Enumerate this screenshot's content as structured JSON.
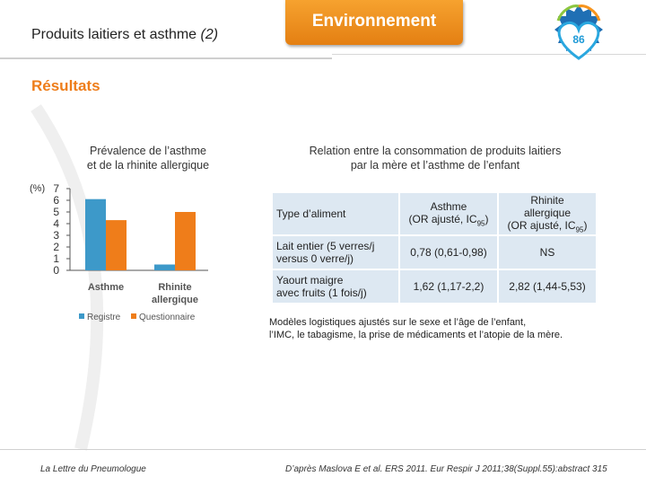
{
  "header": {
    "title": "Produits laitiers et asthme",
    "title_suffix": "(2)",
    "tab_label": "Environnement",
    "page_number": "86"
  },
  "section_title": "Résultats",
  "chart": {
    "title_line1": "Prévalence de l’asthme",
    "title_line2": "et de la rhinite allergique",
    "ylabel": "(%)"
  },
  "chart_data": {
    "type": "bar",
    "title": "Prévalence de l’asthme et de la rhinite allergique",
    "ylabel": "(%)",
    "ylim": [
      0,
      7
    ],
    "yticks": [
      "0",
      "1",
      "2",
      "3",
      "4",
      "5",
      "6",
      "7"
    ],
    "categories": [
      "Asthme",
      "Rhinite allergique"
    ],
    "category_lines": [
      [
        "Asthme"
      ],
      [
        "Rhinite",
        "allergique"
      ]
    ],
    "series": [
      {
        "name": "Registre",
        "color": "#3d99c9",
        "values": [
          6.1,
          0.5
        ]
      },
      {
        "name": "Questionnaire",
        "color": "#ef7d1a",
        "values": [
          4.3,
          5.0
        ]
      }
    ],
    "legend_position": "bottom"
  },
  "table": {
    "title_line1": "Relation entre la consommation de produits laitiers",
    "title_line2": "par la mère et l’asthme de l’enfant",
    "headers": {
      "food": "Type d’aliment",
      "asthma_line1": "Asthme",
      "asthma_line2": "(OR ajusté, IC",
      "asthma_sub": "95",
      "asthma_end": ")",
      "rhinitis_line1": "Rhinite",
      "rhinitis_line2": "allergique",
      "rhinitis_line3": "(OR ajusté, IC",
      "rhinitis_sub": "95",
      "rhinitis_end": ")"
    },
    "rows": [
      {
        "food_line1": "Lait entier (5 verres/j",
        "food_line2": "versus 0 verre/j)",
        "asthma": "0,78 (0,61-0,98)",
        "rhinitis": "NS"
      },
      {
        "food_line1": "Yaourt maigre",
        "food_line2": "avec fruits (1 fois/j)",
        "asthma": "1,62 (1,17-2,2)",
        "rhinitis": "2,82 (1,44-5,53)"
      }
    ]
  },
  "note_line1": "Modèles logistiques ajustés sur le sexe et l’âge de l’enfant,",
  "note_line2": "l’IMC, le tabagisme, la prise de médicaments et l’atopie de la mère.",
  "footer": {
    "journal": "La Lettre du Pneumologue",
    "reference": "D’après Maslova E et al. ERS 2011. Eur Respir J 2011;38(Suppl.55):abstract 315"
  },
  "colors": {
    "accent": "#ee7d1a",
    "blue": "#3d99c9",
    "table_bg": "#dde8f2"
  }
}
